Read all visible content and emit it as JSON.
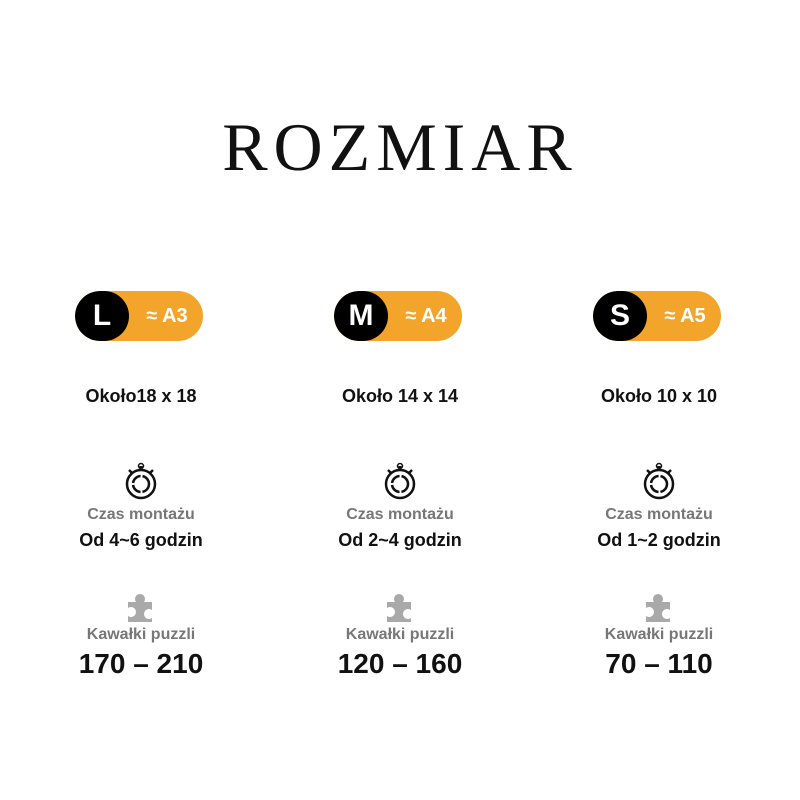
{
  "title": "ROZMIAR",
  "accent_color": "#f2a52a",
  "time_label": "Czas montażu",
  "pieces_label": "Kawałki puzzli",
  "sizes": [
    {
      "size": "L",
      "paper": "≈ A3",
      "dimensions": "Około18 x 18",
      "time": "Od 4~6 godzin",
      "pieces": "170 – 210"
    },
    {
      "size": "M",
      "paper": "≈ A4",
      "dimensions": "Około 14 x 14",
      "time": "Od 2~4 godzin",
      "pieces": "120 – 160"
    },
    {
      "size": "S",
      "paper": "≈ A5",
      "dimensions": "Około 10 x 10",
      "time": "Od 1~2 godzin",
      "pieces": "70 – 110"
    }
  ]
}
